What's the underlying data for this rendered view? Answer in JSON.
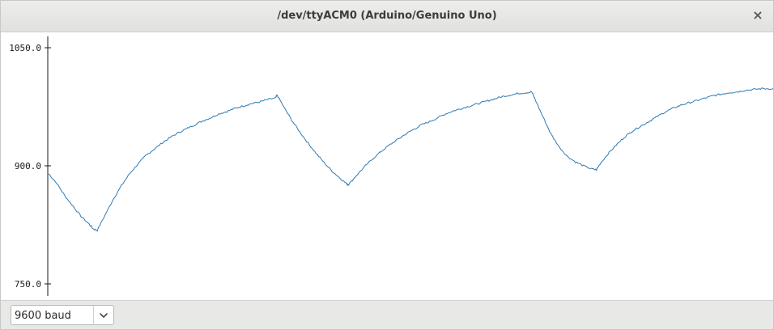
{
  "window": {
    "title": "/dev/ttyACM0 (Arduino/Genuino Uno)",
    "close_glyph": "×"
  },
  "plotter": {
    "line_color": "#2c7bb6"
  },
  "footer": {
    "baud_value": "9600 baud",
    "icon": "chevron-down-icon"
  },
  "chart_data": {
    "type": "line",
    "title": "",
    "xlabel": "",
    "ylabel": "",
    "ylim": [
      740,
      1060
    ],
    "yticks": [
      750,
      900,
      1050
    ],
    "ytick_labels": [
      "750.0",
      "900.0",
      "1050.0"
    ],
    "grid": false,
    "x": [
      0,
      10,
      20,
      30,
      40,
      50,
      55,
      60,
      70,
      80,
      90,
      100,
      110,
      120,
      130,
      140,
      150,
      160,
      170,
      180,
      190,
      200,
      210,
      220,
      230,
      240,
      250,
      260,
      270,
      280,
      282,
      290,
      300,
      310,
      320,
      330,
      340,
      350,
      360,
      368,
      370,
      380,
      390,
      400,
      410,
      420,
      430,
      440,
      450,
      460,
      470,
      480,
      490,
      500,
      510,
      520,
      530,
      540,
      550,
      560,
      570,
      580,
      590,
      596,
      600,
      610,
      620,
      630,
      640,
      650,
      660,
      670,
      676,
      680,
      690,
      700,
      710,
      720,
      730,
      740,
      750,
      760,
      770,
      780,
      790,
      800,
      810,
      820,
      830,
      840,
      850,
      860,
      870,
      880,
      894
    ],
    "series": [
      {
        "values": [
          890,
          878,
          862,
          849,
          836,
          826,
          820,
          818,
          838,
          858,
          875,
          890,
          902,
          913,
          921,
          929,
          936,
          942,
          947,
          952,
          957,
          961,
          966,
          969,
          973,
          976,
          979,
          981,
          984,
          986,
          990,
          975,
          958,
          943,
          929,
          916,
          904,
          893,
          884,
          877,
          876,
          888,
          899,
          909,
          918,
          926,
          933,
          940,
          946,
          952,
          956,
          961,
          966,
          970,
          973,
          976,
          979,
          982,
          985,
          988,
          990,
          992,
          993,
          994,
          985,
          962,
          940,
          924,
          912,
          905,
          900,
          896,
          895,
          902,
          915,
          926,
          936,
          944,
          950,
          956,
          962,
          968,
          973,
          977,
          980,
          983,
          986,
          989,
          991,
          993,
          994,
          996,
          997,
          998,
          998
        ]
      }
    ]
  }
}
